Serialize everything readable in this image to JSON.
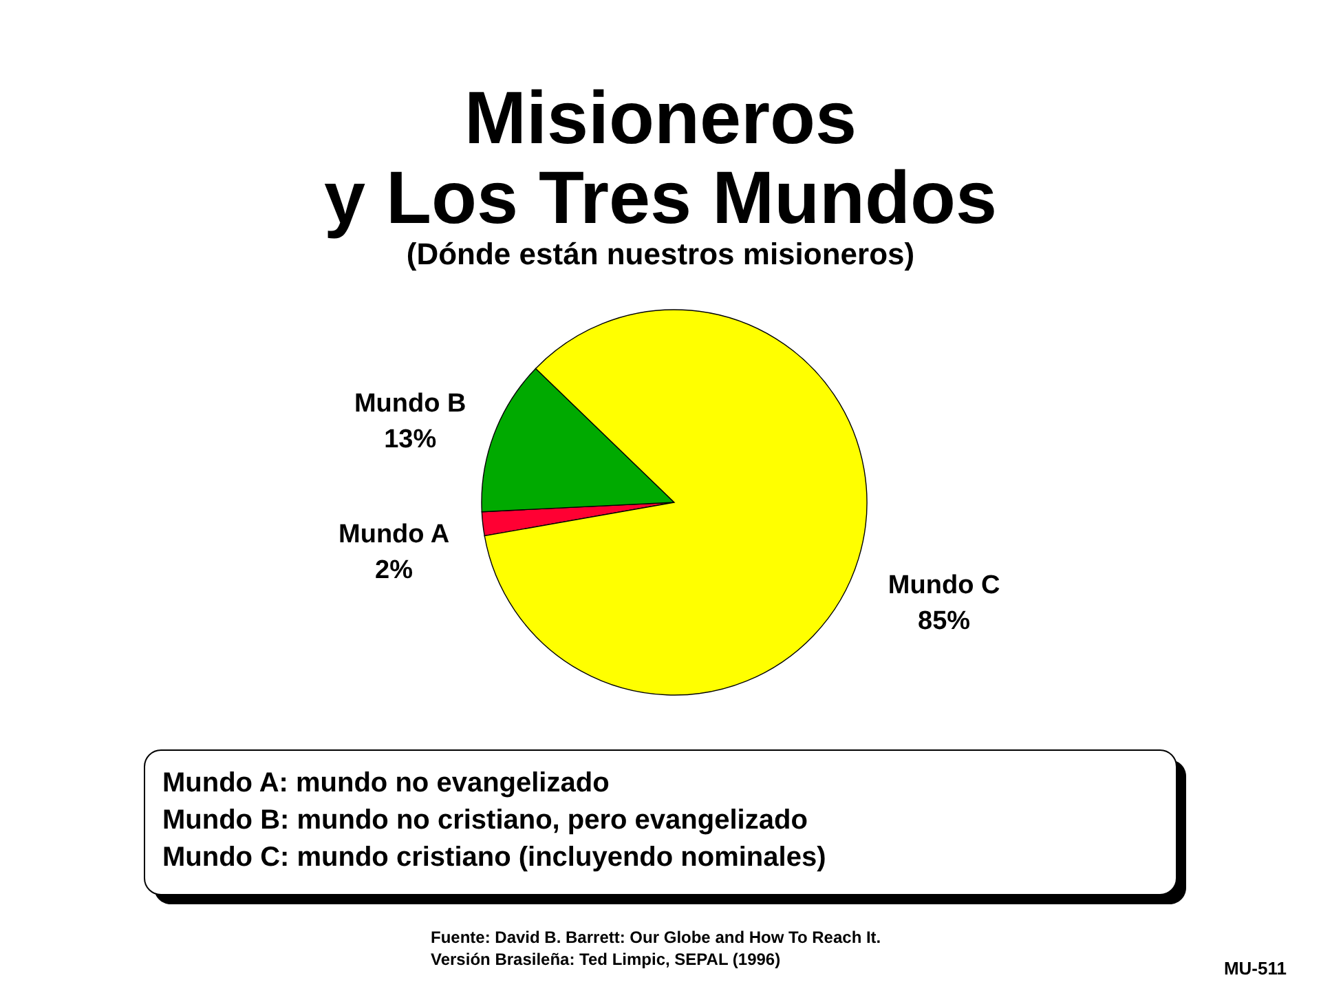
{
  "chart_data": {
    "type": "pie",
    "title": "Misioneros\ny Los Tres Mundos",
    "subtitle": "(Dónde están nuestros misioneros)",
    "categories": [
      "Mundo A",
      "Mundo B",
      "Mundo C"
    ],
    "values": [
      2,
      13,
      85
    ],
    "colors": [
      "#ff0033",
      "#00aa00",
      "#ffff00"
    ],
    "value_labels": [
      "2%",
      "13%",
      "85%"
    ],
    "legend": false,
    "annotations": [
      "Mundo A: mundo no evangelizado\nMundo B: mundo no cristiano, pero evangelizado\nMundo C: mundo cristiano (incluyendo nominales)",
      "Fuente: David B. Barrett: Our Globe and How To Reach It.\nVersión Brasileña: Ted Limpic, SEPAL (1996)",
      "MU-511"
    ]
  }
}
